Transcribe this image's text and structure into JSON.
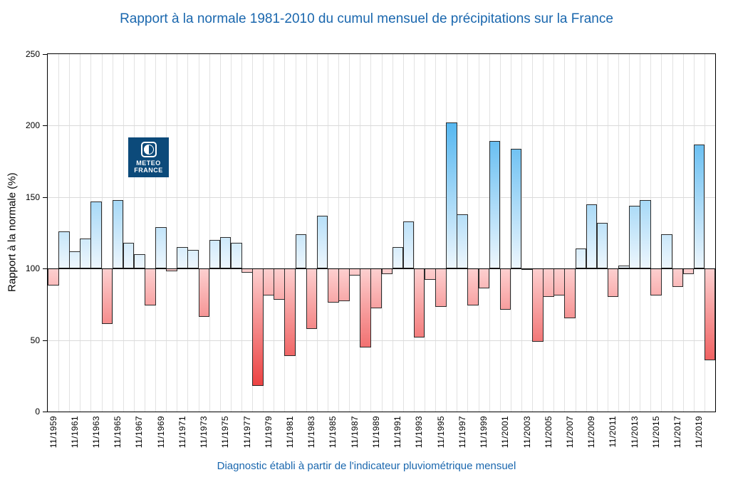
{
  "title": "Rapport à la normale 1981-2010 du cumul mensuel de précipitations sur la France",
  "caption": "Diagnostic établi à partir de l'indicateur pluviométrique mensuel",
  "logo": {
    "line1": "METEO",
    "line2": "FRANCE"
  },
  "colors": {
    "title_text": "#1a67ae",
    "bar_blue_deep": "#0d99ea",
    "bar_blue_light": "#edf6fd",
    "bar_red_light": "#fdcfcf",
    "bar_red_deep": "#e82222",
    "logo_background": "#0c4a7a",
    "baseline": "#000000"
  },
  "chart_data": {
    "type": "bar",
    "title": "Rapport à la normale 1981-2010 du cumul mensuel de précipitations sur la France",
    "xlabel": "",
    "ylabel": "Rapport à la normale (%)",
    "ylim": [
      0,
      250
    ],
    "yticks": [
      0,
      50,
      100,
      150,
      200,
      250
    ],
    "baseline_value": 100,
    "grid": true,
    "legend_position": "none",
    "x_tick_labels": [
      "11/1959",
      "11/1961",
      "11/1963",
      "11/1965",
      "11/1967",
      "11/1969",
      "11/1971",
      "11/1973",
      "11/1975",
      "11/1977",
      "11/1979",
      "11/1981",
      "11/1983",
      "11/1985",
      "11/1987",
      "11/1989",
      "11/1991",
      "11/1993",
      "11/1995",
      "11/1997",
      "11/1999",
      "11/2001",
      "11/2003",
      "11/2005",
      "11/2007",
      "11/2009",
      "11/2011",
      "11/2013",
      "11/2015",
      "11/2017",
      "11/2019"
    ],
    "categories": [
      "11/1959",
      "11/1960",
      "11/1961",
      "11/1962",
      "11/1963",
      "11/1964",
      "11/1965",
      "11/1966",
      "11/1967",
      "11/1968",
      "11/1969",
      "11/1970",
      "11/1971",
      "11/1972",
      "11/1973",
      "11/1974",
      "11/1975",
      "11/1976",
      "11/1977",
      "11/1978",
      "11/1979",
      "11/1980",
      "11/1981",
      "11/1982",
      "11/1983",
      "11/1984",
      "11/1985",
      "11/1986",
      "11/1987",
      "11/1988",
      "11/1989",
      "11/1990",
      "11/1991",
      "11/1992",
      "11/1993",
      "11/1994",
      "11/1995",
      "11/1996",
      "11/1997",
      "11/1998",
      "11/1999",
      "11/2000",
      "11/2001",
      "11/2002",
      "11/2003",
      "11/2004",
      "11/2005",
      "11/2006",
      "11/2007",
      "11/2008",
      "11/2009",
      "11/2010",
      "11/2011",
      "11/2012",
      "11/2013",
      "11/2014",
      "11/2015",
      "11/2016",
      "11/2017",
      "11/2018",
      "11/2019",
      "11/2020"
    ],
    "values": [
      88,
      126,
      112,
      121,
      147,
      61,
      148,
      118,
      110,
      74,
      129,
      98,
      115,
      113,
      66,
      120,
      122,
      118,
      97,
      18,
      81,
      78,
      39,
      124,
      58,
      137,
      76,
      77,
      95,
      45,
      72,
      96,
      115,
      133,
      52,
      92,
      73,
      202,
      138,
      74,
      86,
      189,
      71,
      184,
      99,
      49,
      80,
      81,
      65,
      114,
      145,
      132,
      80,
      102,
      144,
      148,
      81,
      124,
      87,
      96,
      187,
      36
    ],
    "series_note": "blue gradient above 100, red gradient below 100"
  }
}
